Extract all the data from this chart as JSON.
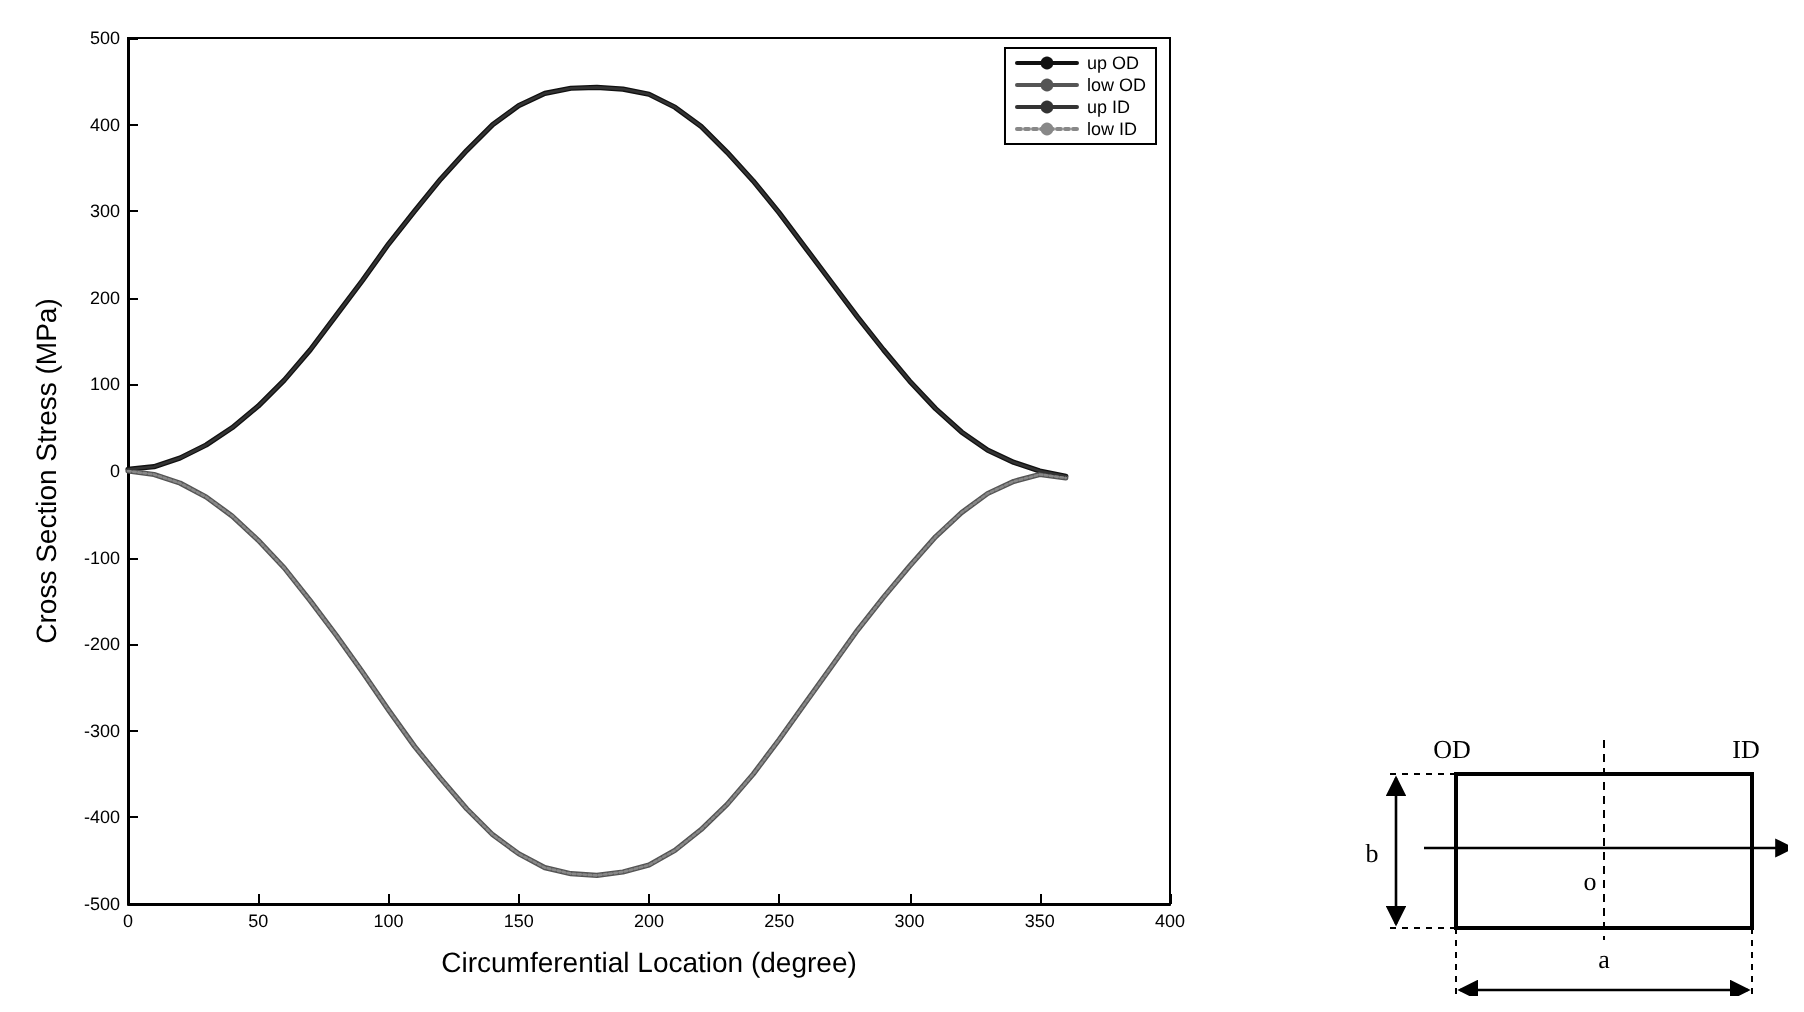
{
  "chart_data": {
    "type": "line",
    "xlabel": "Circumferential Location (degree)",
    "ylabel": "Cross Section Stress (MPa)",
    "x": [
      0,
      10,
      20,
      30,
      40,
      50,
      60,
      70,
      80,
      90,
      100,
      110,
      120,
      130,
      140,
      150,
      160,
      170,
      180,
      190,
      200,
      210,
      220,
      230,
      240,
      250,
      260,
      270,
      280,
      290,
      300,
      310,
      320,
      330,
      340,
      350,
      360
    ],
    "series": [
      {
        "name": "up OD",
        "color": "#111111",
        "line_style": "solid",
        "values": [
          2,
          5,
          15,
          30,
          50,
          75,
          105,
          140,
          180,
          220,
          262,
          300,
          337,
          370,
          400,
          422,
          436,
          442,
          443,
          441,
          435,
          420,
          398,
          368,
          335,
          298,
          258,
          218,
          178,
          140,
          104,
          72,
          45,
          24,
          10,
          0,
          -6
        ]
      },
      {
        "name": "low OD",
        "color": "#555555",
        "line_style": "solid",
        "values": [
          0,
          -4,
          -14,
          -30,
          -52,
          -80,
          -112,
          -150,
          -190,
          -232,
          -276,
          -318,
          -355,
          -390,
          -420,
          -442,
          -458,
          -465,
          -467,
          -463,
          -455,
          -438,
          -414,
          -385,
          -350,
          -310,
          -268,
          -226,
          -184,
          -146,
          -110,
          -76,
          -48,
          -26,
          -12,
          -4,
          -8
        ]
      },
      {
        "name": "up ID",
        "color": "#333333",
        "line_style": "solid",
        "values": [
          2,
          5,
          15,
          30,
          50,
          75,
          105,
          140,
          180,
          220,
          262,
          300,
          337,
          370,
          400,
          422,
          436,
          442,
          443,
          441,
          435,
          420,
          398,
          368,
          335,
          298,
          258,
          218,
          178,
          140,
          104,
          72,
          45,
          24,
          10,
          0,
          -6
        ]
      },
      {
        "name": "low ID",
        "color": "#888888",
        "line_style": "dotted",
        "values": [
          0,
          -4,
          -14,
          -30,
          -52,
          -80,
          -112,
          -150,
          -190,
          -232,
          -276,
          -318,
          -355,
          -390,
          -420,
          -442,
          -458,
          -465,
          -467,
          -463,
          -455,
          -438,
          -414,
          -385,
          -350,
          -310,
          -268,
          -226,
          -184,
          -146,
          -110,
          -76,
          -48,
          -26,
          -12,
          -4,
          -8
        ]
      }
    ],
    "xlim": [
      0,
      400
    ],
    "xticks": [
      0,
      50,
      100,
      150,
      200,
      250,
      300,
      350,
      400
    ],
    "ylim": [
      -500,
      500
    ],
    "yticks": [
      -500,
      -400,
      -300,
      -200,
      -100,
      0,
      100,
      200,
      300,
      400,
      500
    ],
    "grid": false,
    "legend": "top right",
    "marker": "none",
    "annotations": [
      "OD",
      "ID",
      "b",
      "o",
      "a"
    ]
  }
}
